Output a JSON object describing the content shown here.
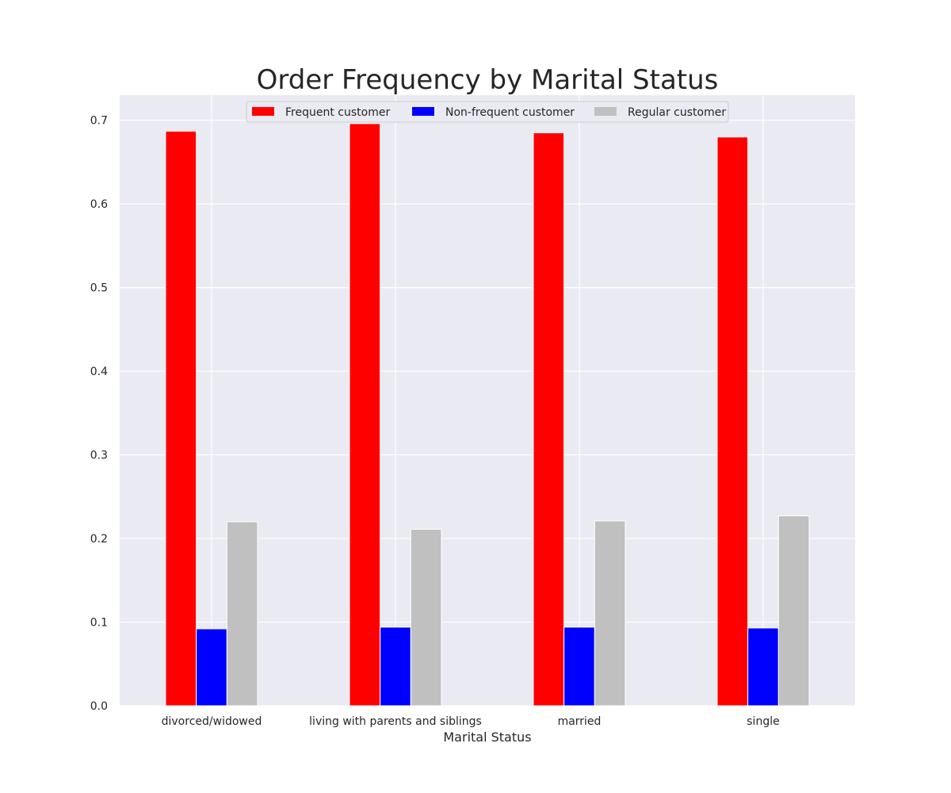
{
  "chart_data": {
    "type": "bar",
    "title": "Order Frequency by Marital Status",
    "xlabel": "Marital Status",
    "ylabel": "",
    "categories": [
      "divorced/widowed",
      "living with parents and siblings",
      "married",
      "single"
    ],
    "series": [
      {
        "name": "Frequent customer",
        "color": "#ff0000",
        "values": [
          0.687,
          0.696,
          0.685,
          0.68
        ]
      },
      {
        "name": "Non-frequent customer",
        "color": "#0000ff",
        "values": [
          0.092,
          0.094,
          0.094,
          0.093
        ]
      },
      {
        "name": "Regular customer",
        "color": "#c0c0c0",
        "values": [
          0.22,
          0.211,
          0.221,
          0.227
        ]
      }
    ],
    "ylim": [
      0,
      0.73
    ],
    "yticks": [
      0.0,
      0.1,
      0.2,
      0.3,
      0.4,
      0.5,
      0.6,
      0.7
    ],
    "ytick_labels": [
      "0.0",
      "0.1",
      "0.2",
      "0.3",
      "0.4",
      "0.5",
      "0.6",
      "0.7"
    ],
    "grid": true,
    "legend_position": "top-center",
    "background_color": "#eaeaf2",
    "grid_color": "#ffffff"
  }
}
